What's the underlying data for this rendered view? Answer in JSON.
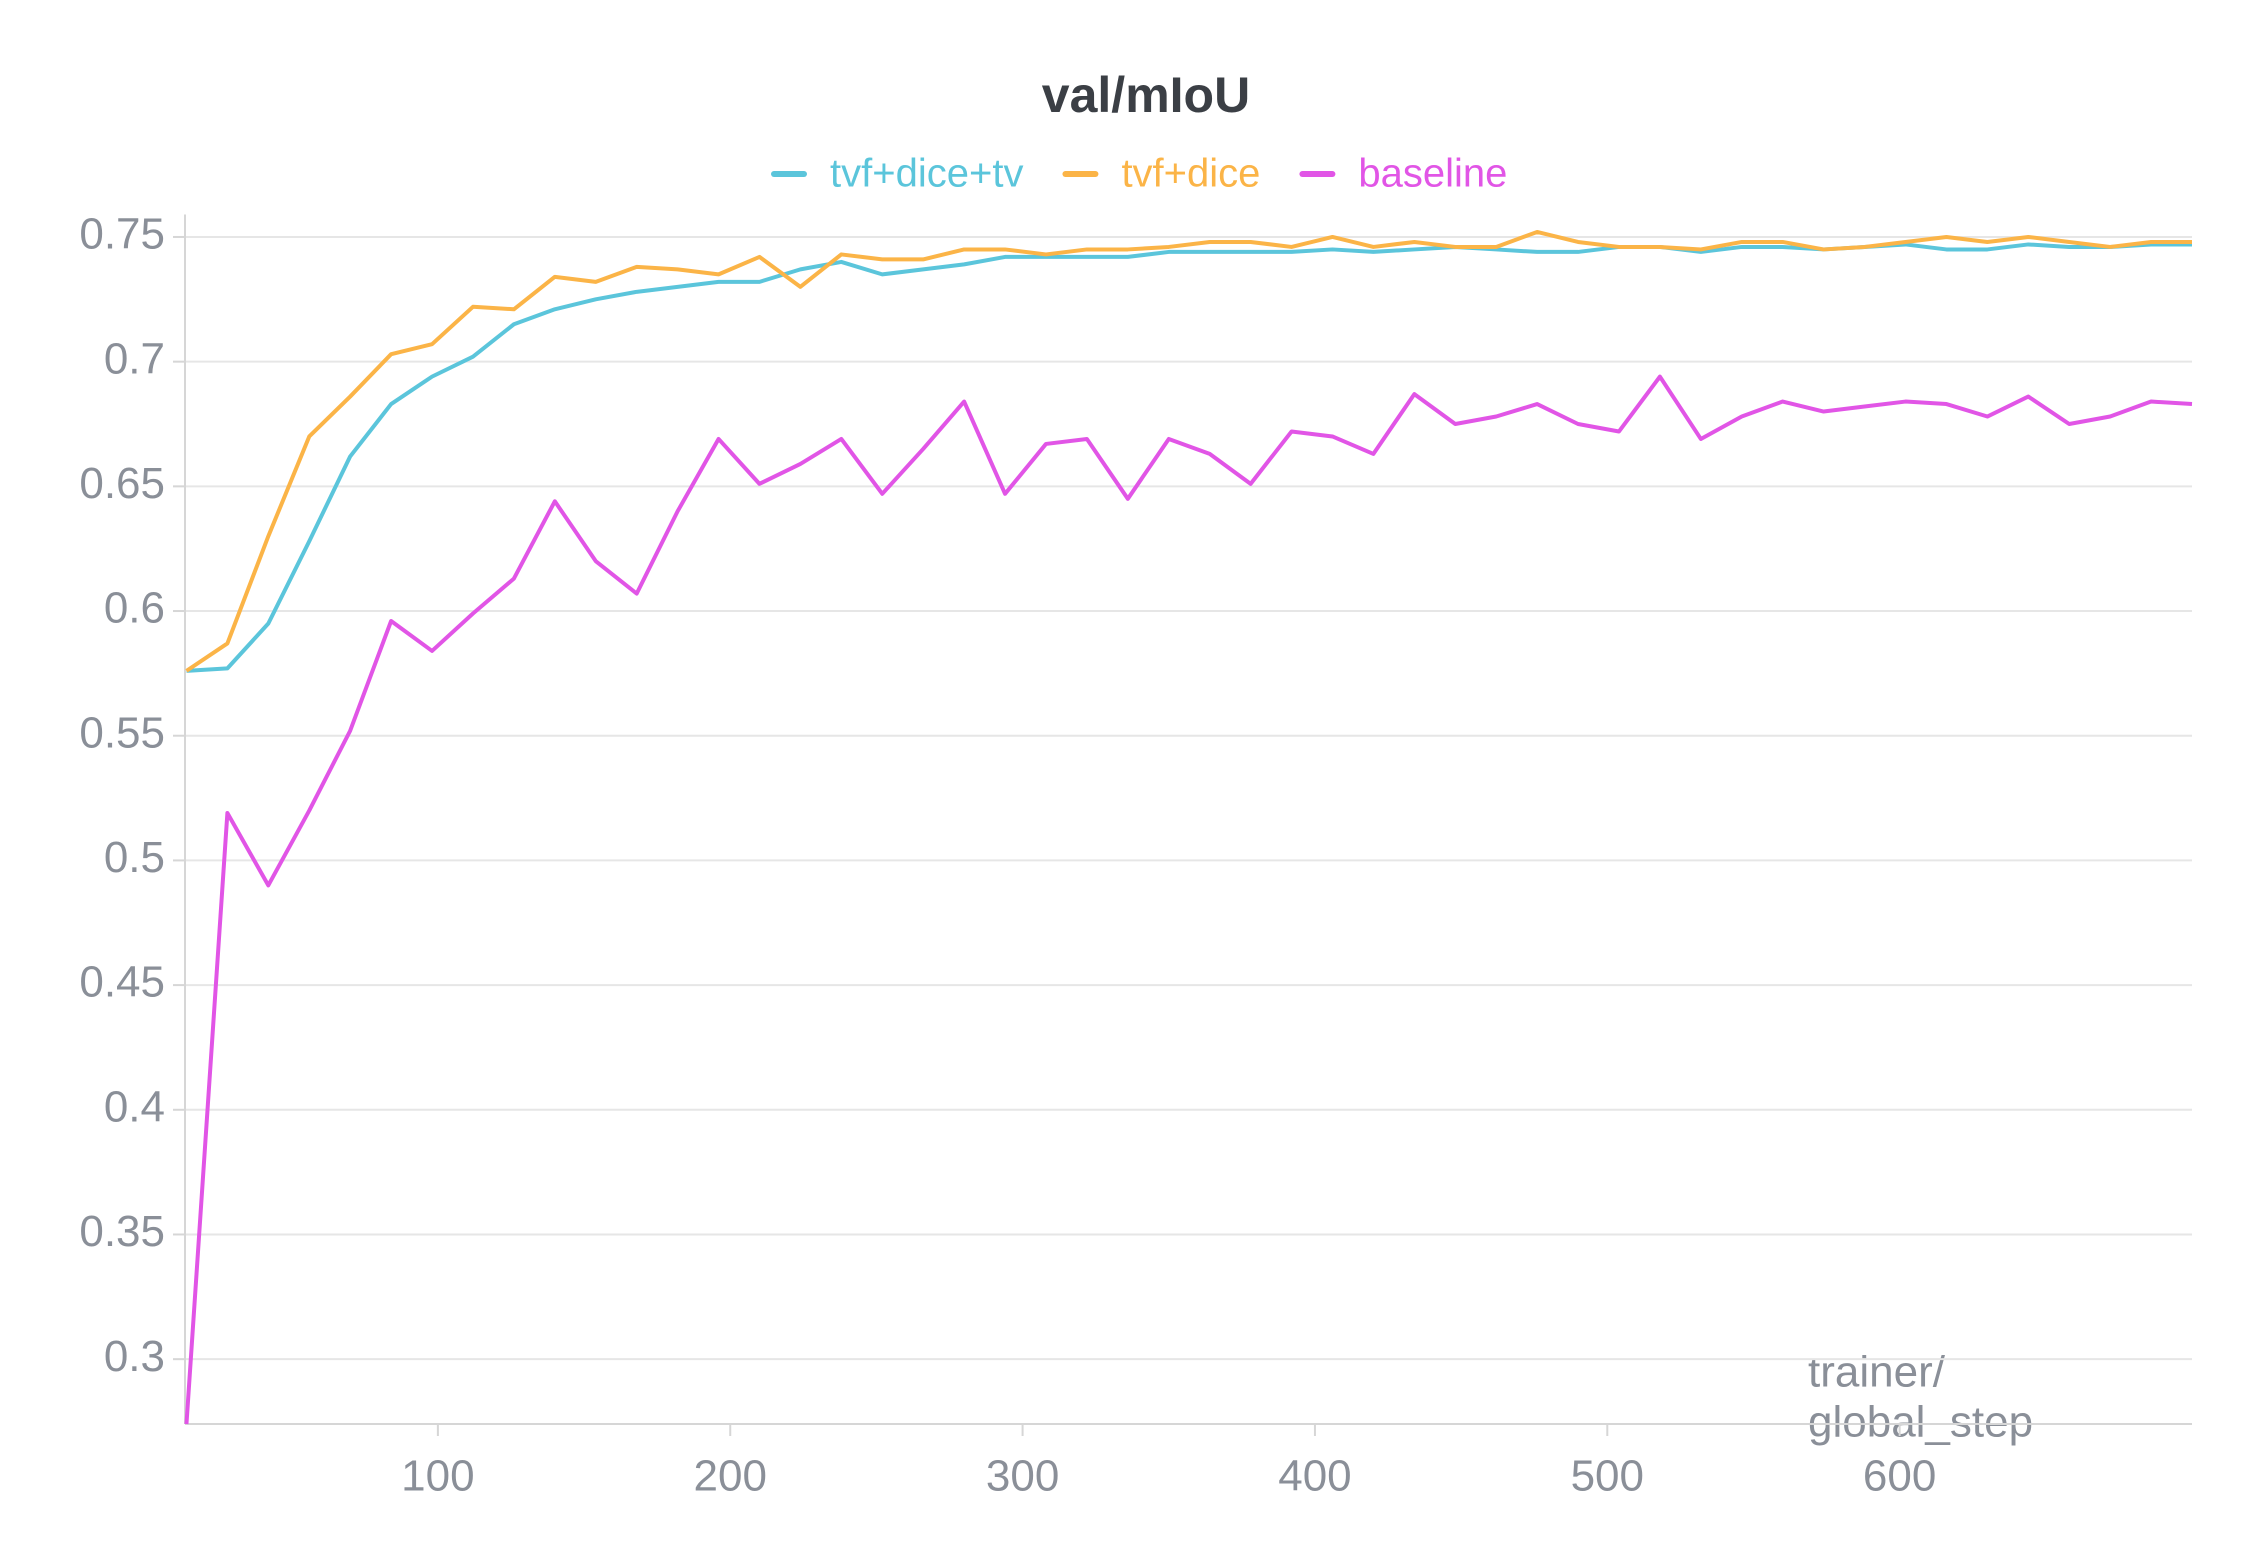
{
  "chart_data": {
    "type": "line",
    "title": "val/mIoU",
    "xlabel": [
      "trainer/",
      "global_step"
    ],
    "x": [
      14,
      28,
      42,
      56,
      70,
      84,
      98,
      112,
      126,
      140,
      154,
      168,
      182,
      196,
      210,
      224,
      238,
      252,
      266,
      280,
      294,
      308,
      322,
      336,
      350,
      364,
      378,
      392,
      406,
      420,
      434,
      448,
      462,
      476,
      490,
      504,
      518,
      532,
      546,
      560,
      574,
      588,
      602,
      616,
      630,
      644,
      658,
      672,
      686,
      700
    ],
    "series": [
      {
        "name": "tvf+dice+tv",
        "color": "#5bc5db",
        "values": [
          0.576,
          0.577,
          0.595,
          0.628,
          0.662,
          0.683,
          0.694,
          0.702,
          0.715,
          0.721,
          0.725,
          0.728,
          0.73,
          0.732,
          0.732,
          0.737,
          0.74,
          0.735,
          0.737,
          0.739,
          0.742,
          0.742,
          0.742,
          0.742,
          0.744,
          0.744,
          0.744,
          0.744,
          0.745,
          0.744,
          0.745,
          0.746,
          0.745,
          0.744,
          0.744,
          0.746,
          0.746,
          0.744,
          0.746,
          0.746,
          0.745,
          0.746,
          0.747,
          0.745,
          0.745,
          0.747,
          0.746,
          0.746,
          0.747,
          0.747
        ]
      },
      {
        "name": "tvf+dice",
        "color": "#fbb447",
        "values": [
          0.576,
          0.587,
          0.63,
          0.67,
          0.686,
          0.703,
          0.707,
          0.722,
          0.721,
          0.734,
          0.732,
          0.738,
          0.737,
          0.735,
          0.742,
          0.73,
          0.743,
          0.741,
          0.741,
          0.745,
          0.745,
          0.743,
          0.745,
          0.745,
          0.746,
          0.748,
          0.748,
          0.746,
          0.75,
          0.746,
          0.748,
          0.746,
          0.746,
          0.752,
          0.748,
          0.746,
          0.746,
          0.745,
          0.748,
          0.748,
          0.745,
          0.746,
          0.748,
          0.75,
          0.748,
          0.75,
          0.748,
          0.746,
          0.748,
          0.748
        ]
      },
      {
        "name": "baseline",
        "color": "#e155e6",
        "values": [
          0.274,
          0.519,
          0.49,
          0.52,
          0.552,
          0.596,
          0.584,
          0.599,
          0.613,
          0.644,
          0.62,
          0.607,
          0.64,
          0.669,
          0.651,
          0.659,
          0.669,
          0.647,
          0.665,
          0.684,
          0.647,
          0.667,
          0.669,
          0.645,
          0.669,
          0.663,
          0.651,
          0.672,
          0.67,
          0.663,
          0.687,
          0.675,
          0.678,
          0.683,
          0.675,
          0.672,
          0.694,
          0.669,
          0.678,
          0.684,
          0.68,
          0.682,
          0.684,
          0.683,
          0.678,
          0.686,
          0.675,
          0.678,
          0.684,
          0.683
        ]
      }
    ],
    "xlim": [
      13.5,
      700
    ],
    "ylim": [
      0.274,
      0.755
    ],
    "xticks": [
      100,
      200,
      300,
      400,
      500,
      600
    ],
    "yticks": [
      0.3,
      0.35,
      0.4,
      0.45,
      0.5,
      0.55,
      0.6,
      0.65,
      0.7,
      0.75
    ],
    "grid": true
  }
}
